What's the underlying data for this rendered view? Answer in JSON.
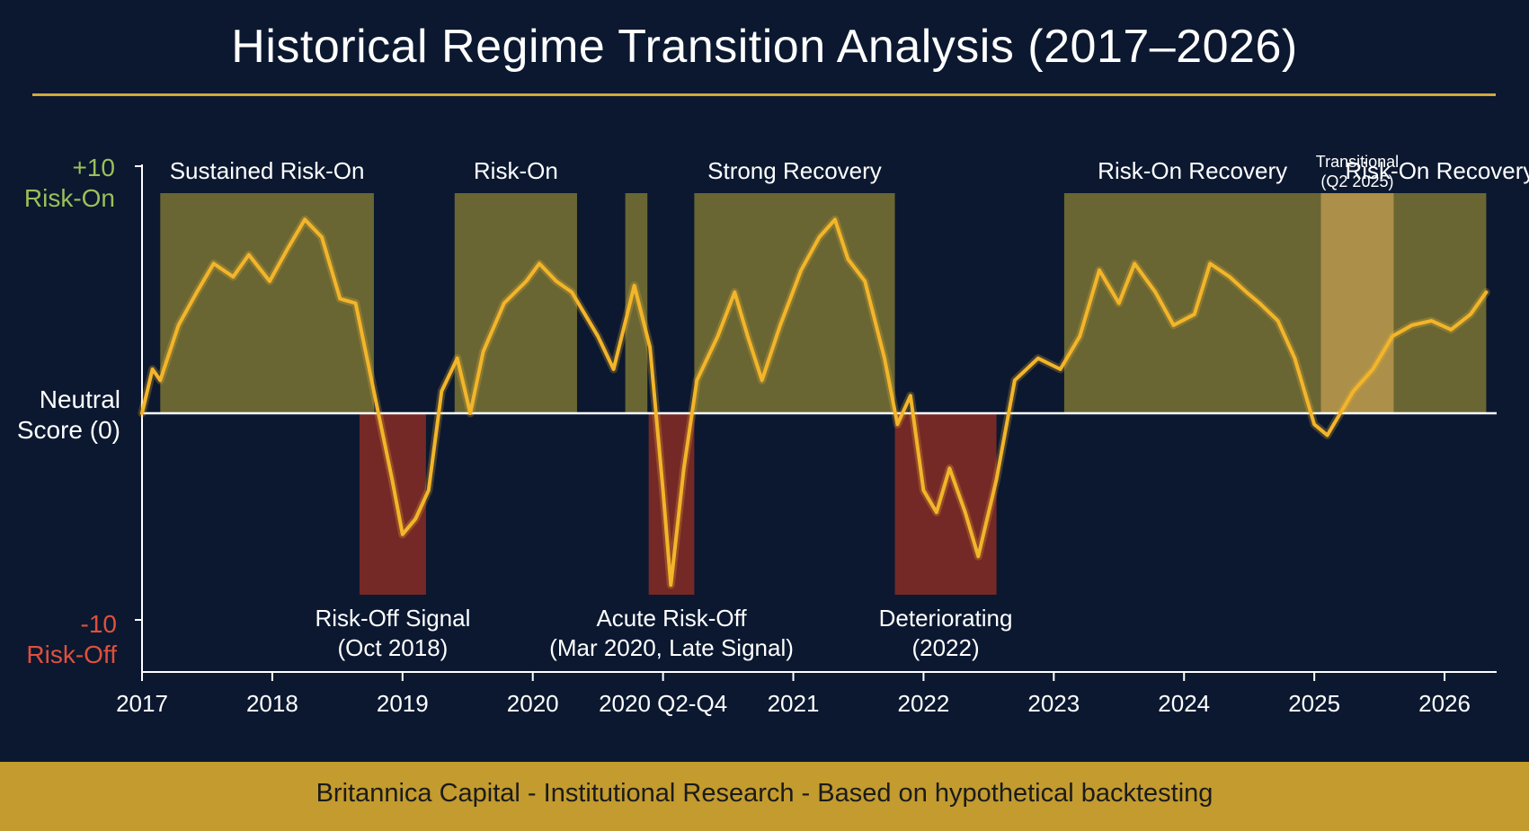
{
  "chart_data": {
    "type": "line",
    "title": "Historical Regime Transition Analysis (2017–2026)",
    "ylim": [
      -10,
      10
    ],
    "y_axis_labels": {
      "top_value": "+10",
      "top_label": "Risk-On",
      "mid_value": "Neutral",
      "mid_label": "Score (0)",
      "bottom_value": "-10",
      "bottom_label": "Risk-Off"
    },
    "x_ticks": [
      {
        "x": 2017.0,
        "label": "2017"
      },
      {
        "x": 2018.0,
        "label": "2018"
      },
      {
        "x": 2019.0,
        "label": "2019"
      },
      {
        "x": 2020.0,
        "label": "2020"
      },
      {
        "x": 2021.0,
        "label": "2020 Q2-Q4"
      },
      {
        "x": 2022.0,
        "label": "2021"
      },
      {
        "x": 2023.0,
        "label": "2022"
      },
      {
        "x": 2024.0,
        "label": "2023"
      },
      {
        "x": 2025.0,
        "label": "2024"
      },
      {
        "x": 2026.0,
        "label": "2025"
      },
      {
        "x": 2027.0,
        "label": "2026"
      }
    ],
    "xlim": [
      2017.0,
      2027.4
    ],
    "regimes": [
      {
        "label": "Sustained Risk-On",
        "start": 2017.14,
        "end": 2018.78,
        "kind": "risk-on"
      },
      {
        "label": "Risk-On",
        "start": 2019.4,
        "end": 2020.34,
        "kind": "risk-on"
      },
      {
        "label": "",
        "start": 2020.71,
        "end": 2020.88,
        "kind": "risk-on"
      },
      {
        "label": "Strong Recovery",
        "start": 2021.24,
        "end": 2022.78,
        "kind": "risk-on"
      },
      {
        "label": "Risk-On Recovery",
        "start": 2024.08,
        "end": 2026.05,
        "kind": "risk-on"
      },
      {
        "label": "Transitional (Q2 2025)",
        "start": 2026.05,
        "end": 2026.61,
        "kind": "transitional"
      },
      {
        "label": "Risk-On Recovery",
        "start": 2026.61,
        "end": 2027.32,
        "kind": "risk-on"
      },
      {
        "label": "Risk-Off Signal (Oct 2018)",
        "start": 2018.67,
        "end": 2019.18,
        "kind": "risk-off"
      },
      {
        "label": "Acute Risk-Off (Mar 2020, Late Signal)",
        "start": 2020.89,
        "end": 2021.24,
        "kind": "risk-off"
      },
      {
        "label": "Deteriorating (2022)",
        "start": 2022.78,
        "end": 2023.56,
        "kind": "risk-off"
      }
    ],
    "series": [
      {
        "values": [
          [
            2017.0,
            0
          ],
          [
            2017.08,
            2.0
          ],
          [
            2017.14,
            1.5
          ],
          [
            2017.28,
            4.0
          ],
          [
            2017.42,
            5.5
          ],
          [
            2017.55,
            6.8
          ],
          [
            2017.7,
            6.2
          ],
          [
            2017.82,
            7.2
          ],
          [
            2017.98,
            6.0
          ],
          [
            2018.12,
            7.5
          ],
          [
            2018.25,
            8.8
          ],
          [
            2018.38,
            8.0
          ],
          [
            2018.52,
            5.2
          ],
          [
            2018.64,
            5.0
          ],
          [
            2018.78,
            1.0
          ],
          [
            2018.92,
            -3.0
          ],
          [
            2019.0,
            -5.5
          ],
          [
            2019.1,
            -4.8
          ],
          [
            2019.2,
            -3.5
          ],
          [
            2019.3,
            1.0
          ],
          [
            2019.42,
            2.5
          ],
          [
            2019.52,
            0
          ],
          [
            2019.62,
            2.8
          ],
          [
            2019.78,
            5.0
          ],
          [
            2019.95,
            6.0
          ],
          [
            2020.05,
            6.8
          ],
          [
            2020.18,
            6.0
          ],
          [
            2020.3,
            5.5
          ],
          [
            2020.4,
            4.5
          ],
          [
            2020.5,
            3.5
          ],
          [
            2020.62,
            2.0
          ],
          [
            2020.78,
            5.8
          ],
          [
            2020.9,
            3.0
          ],
          [
            2021.0,
            -3.5
          ],
          [
            2021.06,
            -7.8
          ],
          [
            2021.16,
            -2.5
          ],
          [
            2021.26,
            1.5
          ],
          [
            2021.42,
            3.5
          ],
          [
            2021.55,
            5.5
          ],
          [
            2021.65,
            3.5
          ],
          [
            2021.76,
            1.5
          ],
          [
            2021.9,
            4.0
          ],
          [
            2022.06,
            6.5
          ],
          [
            2022.2,
            8.0
          ],
          [
            2022.32,
            8.8
          ],
          [
            2022.42,
            7.0
          ],
          [
            2022.55,
            6.0
          ],
          [
            2022.7,
            2.5
          ],
          [
            2022.8,
            -0.5
          ],
          [
            2022.9,
            0.8
          ],
          [
            2023.0,
            -3.5
          ],
          [
            2023.1,
            -4.5
          ],
          [
            2023.2,
            -2.5
          ],
          [
            2023.32,
            -4.5
          ],
          [
            2023.42,
            -6.5
          ],
          [
            2023.56,
            -3.0
          ],
          [
            2023.7,
            1.5
          ],
          [
            2023.88,
            2.5
          ],
          [
            2024.05,
            2.0
          ],
          [
            2024.2,
            3.5
          ],
          [
            2024.35,
            6.5
          ],
          [
            2024.5,
            5.0
          ],
          [
            2024.62,
            6.8
          ],
          [
            2024.78,
            5.5
          ],
          [
            2024.92,
            4.0
          ],
          [
            2025.08,
            4.5
          ],
          [
            2025.2,
            6.8
          ],
          [
            2025.35,
            6.2
          ],
          [
            2025.48,
            5.5
          ],
          [
            2025.58,
            5.0
          ],
          [
            2025.72,
            4.2
          ],
          [
            2025.85,
            2.5
          ],
          [
            2026.0,
            -0.5
          ],
          [
            2026.1,
            -1.0
          ],
          [
            2026.2,
            0
          ],
          [
            2026.3,
            1.0
          ],
          [
            2026.45,
            2.0
          ],
          [
            2026.6,
            3.5
          ],
          [
            2026.75,
            4.0
          ],
          [
            2026.9,
            4.2
          ],
          [
            2027.05,
            3.8
          ],
          [
            2027.2,
            4.5
          ],
          [
            2027.32,
            5.5
          ]
        ]
      }
    ]
  },
  "colors": {
    "background": "#0b1830",
    "line": "#f3b52a",
    "risk_on_band": "#6f6a34",
    "transitional_band": "#c9a54e",
    "risk_off_band": "#7a2a26",
    "accent_rule": "#d4a93a",
    "risk_on_text": "#9dbf5a",
    "risk_off_text": "#e0503c"
  },
  "footer": {
    "text": "Britannica Capital - Institutional Research - Based on hypothetical backtesting"
  }
}
